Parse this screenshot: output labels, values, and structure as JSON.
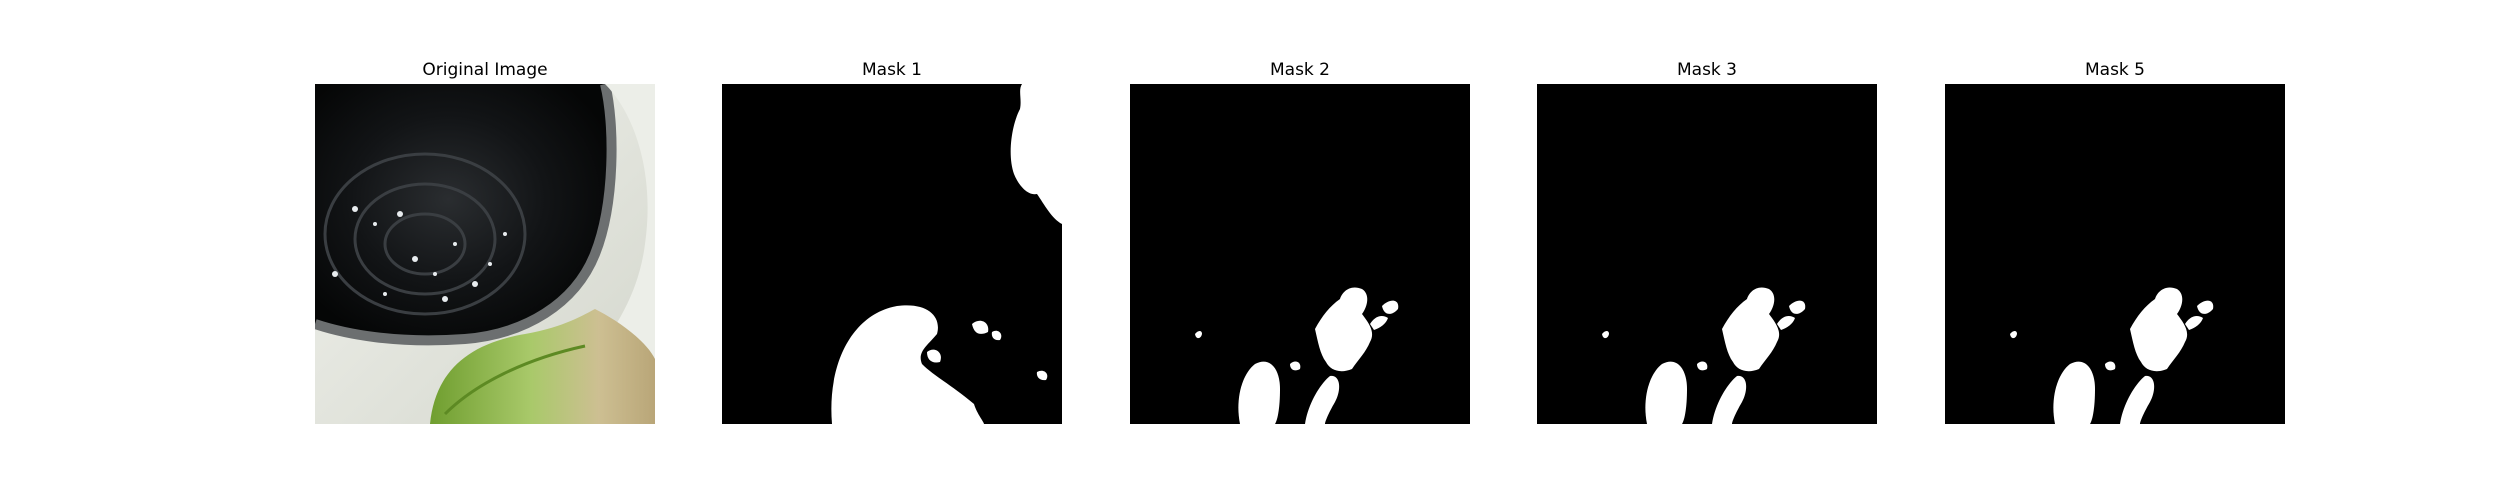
{
  "figure": {
    "panels": [
      {
        "title": "Original Image",
        "kind": "photo"
      },
      {
        "title": "Mask 1",
        "kind": "mask"
      },
      {
        "title": "Mask 2",
        "kind": "mask"
      },
      {
        "title": "Mask 3",
        "kind": "mask"
      },
      {
        "title": "Mask 5",
        "kind": "mask"
      }
    ]
  },
  "colors": {
    "mask_background": "#000000",
    "mask_foreground": "#ffffff",
    "pot_rim": "#e9ebe3",
    "pot_interior": "#0c0d0e",
    "leaf_green": "#8fbf3f",
    "leaf_dry": "#d6c9a4"
  }
}
